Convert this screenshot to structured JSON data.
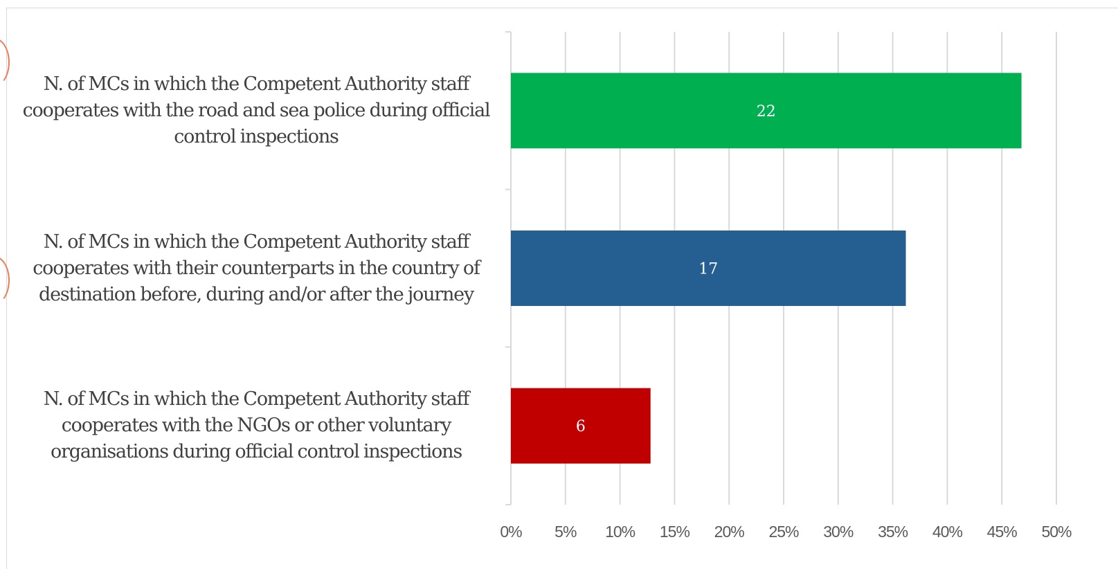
{
  "chart_data": {
    "type": "bar",
    "orientation": "horizontal",
    "categories": [
      "N. of MCs in which the Competent Authority staff cooperates with the road and sea police during official control inspections",
      "N. of MCs in which the Competent Authority staff cooperates with their counterparts in the country of destination before, during and/or after the journey",
      "N. of MCs in which the Competent Authority staff cooperates with the NGOs or other voluntary organisations during official control inspections"
    ],
    "values": [
      46.8,
      36.2,
      12.8
    ],
    "data_labels": [
      "22",
      "17",
      "6"
    ],
    "colors": [
      "#00b050",
      "#255e91",
      "#c00000"
    ],
    "x_ticks": [
      "0%",
      "5%",
      "10%",
      "15%",
      "20%",
      "25%",
      "30%",
      "35%",
      "40%",
      "45%",
      "50%"
    ],
    "xlim": [
      0,
      50
    ],
    "grid": true,
    "legend": "none",
    "title": "",
    "xlabel": "",
    "ylabel": ""
  }
}
